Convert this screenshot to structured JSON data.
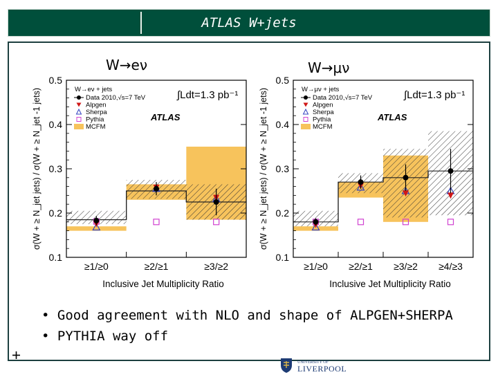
{
  "slide": {
    "title": "ATLAS W+jets",
    "bullets": [
      "• Good agreement with NLO and shape of ALPGEN+SHERPA",
      "• PYTHIA way off"
    ],
    "logo_text": "UNIVERSITY OF",
    "logo_name": "LIVERPOOL"
  },
  "chart_data": [
    {
      "type": "bar",
      "title": "W→eν",
      "xlabel": "Inclusive Jet Multiplicity Ratio",
      "ylabel": "σ(W + ≥ N_jet jets) / σ(W + ≥ N_jet -1 jets)",
      "ylim": [
        0.1,
        0.5
      ],
      "yticks": [
        "0.1",
        "0.2",
        "0.3",
        "0.4",
        "0.5"
      ],
      "categories": [
        "≥1/≥0",
        "≥2/≥1",
        "≥3/≥2"
      ],
      "annotation_lumi": "∫Ldt=1.3 pb⁻¹",
      "annotation_experiment": "ATLAS",
      "legend_header": "W→eν + jets",
      "legend": [
        "Data 2010,√s=7 TeV",
        "Alpgen",
        "Sherpa",
        "Pythia",
        "MCFM"
      ],
      "series": [
        {
          "name": "Data 2010,√s=7 TeV",
          "values": [
            0.183,
            0.255,
            0.225
          ],
          "errors": [
            0.01,
            0.015,
            0.03
          ]
        },
        {
          "name": "Alpgen",
          "values": [
            0.176,
            0.258,
            0.235
          ]
        },
        {
          "name": "Sherpa",
          "values": [
            0.168,
            0.255,
            0.232
          ]
        },
        {
          "name": "Pythia",
          "values": [
            0.181,
            0.18,
            0.18
          ]
        },
        {
          "name": "MCFM",
          "low": [
            0.16,
            0.23,
            0.185
          ],
          "high": [
            0.17,
            0.265,
            0.35
          ]
        }
      ],
      "data_band": [
        [
          0.175,
          0.205
        ],
        [
          0.232,
          0.275
        ],
        [
          0.185,
          0.265
        ]
      ],
      "data_step": [
        0.185,
        0.25,
        0.225
      ],
      "legend_position": "top-left",
      "grid": false
    },
    {
      "type": "bar",
      "title": "W→μν",
      "xlabel": "Inclusive Jet Multiplicity Ratio",
      "ylabel": "σ(W + ≥ N_jet jets) / σ(W + ≥ N_jet -1 jets)",
      "ylim": [
        0.1,
        0.5
      ],
      "yticks": [
        "0.1",
        "0.2",
        "0.3",
        "0.4",
        "0.5"
      ],
      "categories": [
        "≥1/≥0",
        "≥2/≥1",
        "≥3/≥2",
        "≥4/≥3"
      ],
      "annotation_lumi": "∫Ldt=1.3 pb⁻¹",
      "annotation_experiment": "ATLAS",
      "legend_header": "W→μν + jets",
      "legend": [
        "Data 2010,√s=7 TeV",
        "Alpgen",
        "Sherpa",
        "Pythia",
        "MCFM"
      ],
      "series": [
        {
          "name": "Data 2010,√s=7 TeV",
          "values": [
            0.18,
            0.27,
            0.28,
            0.295
          ],
          "errors": [
            0.008,
            0.015,
            0.03,
            0.05
          ]
        },
        {
          "name": "Alpgen",
          "values": [
            0.174,
            0.262,
            0.245,
            0.24
          ]
        },
        {
          "name": "Sherpa",
          "values": [
            0.168,
            0.258,
            0.25,
            0.25
          ]
        },
        {
          "name": "Pythia",
          "values": [
            0.18,
            0.18,
            0.18,
            0.18
          ]
        },
        {
          "name": "MCFM",
          "low": [
            0.16,
            0.235,
            0.18,
            null
          ],
          "high": [
            0.17,
            0.27,
            0.33,
            null
          ]
        }
      ],
      "data_band": [
        [
          0.17,
          0.205
        ],
        [
          0.245,
          0.29
        ],
        [
          0.19,
          0.345
        ],
        [
          0.195,
          0.385
        ]
      ],
      "data_step": [
        0.18,
        0.27,
        0.28,
        0.295
      ],
      "legend_position": "top-left",
      "grid": false
    }
  ]
}
